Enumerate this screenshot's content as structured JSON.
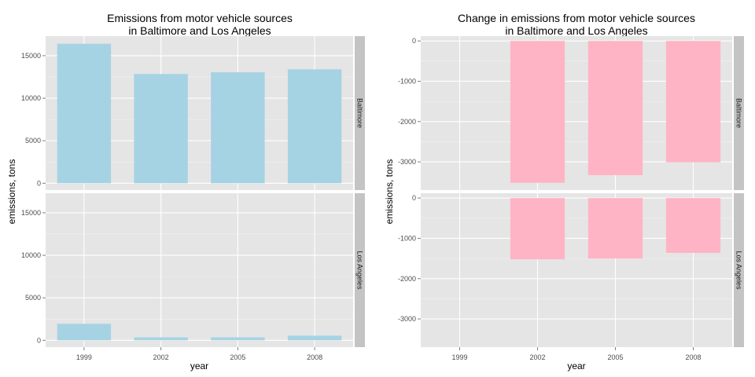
{
  "chart_data": [
    {
      "type": "bar",
      "title_lines": [
        "Emissions from motor vehicle sources",
        "in Baltimore and Los Angeles"
      ],
      "xlabel": "year",
      "ylabel": "emissions, tons",
      "categories": [
        "1999",
        "2002",
        "2005",
        "2008"
      ],
      "ylim": [
        -800,
        17300
      ],
      "yticks": [
        0,
        5000,
        10000,
        15000
      ],
      "ytick_labels": [
        "0",
        "5000",
        "10000",
        "15000"
      ],
      "bar_color": "#a6d3e3",
      "facets": [
        {
          "label": "Baltimore",
          "values": [
            16400,
            12850,
            13050,
            13400
          ]
        },
        {
          "label": "Los Angeles",
          "values": [
            1950,
            350,
            350,
            550
          ]
        }
      ],
      "grid": true,
      "panel_background": "#e5e5e5",
      "strip_color": "#c4c4c4"
    },
    {
      "type": "bar",
      "title_lines": [
        "Change in emissions from motor vehicle sources",
        "in Baltimore and Los Angeles"
      ],
      "xlabel": "year",
      "ylabel": "emissions, tons",
      "categories": [
        "1999",
        "2002",
        "2005",
        "2008"
      ],
      "ylim": [
        -3700,
        120
      ],
      "yticks": [
        0,
        -1000,
        -2000,
        -3000
      ],
      "ytick_labels": [
        "0",
        "-1000",
        "-2000",
        "-3000"
      ],
      "bar_color": "#feb4c4",
      "facets": [
        {
          "label": "Baltimore",
          "values": [
            0,
            -3520,
            -3330,
            -3010
          ]
        },
        {
          "label": "Los Angeles",
          "values": [
            0,
            -1520,
            -1500,
            -1360
          ]
        }
      ],
      "grid": true,
      "panel_background": "#e5e5e5",
      "strip_color": "#c4c4c4"
    }
  ]
}
